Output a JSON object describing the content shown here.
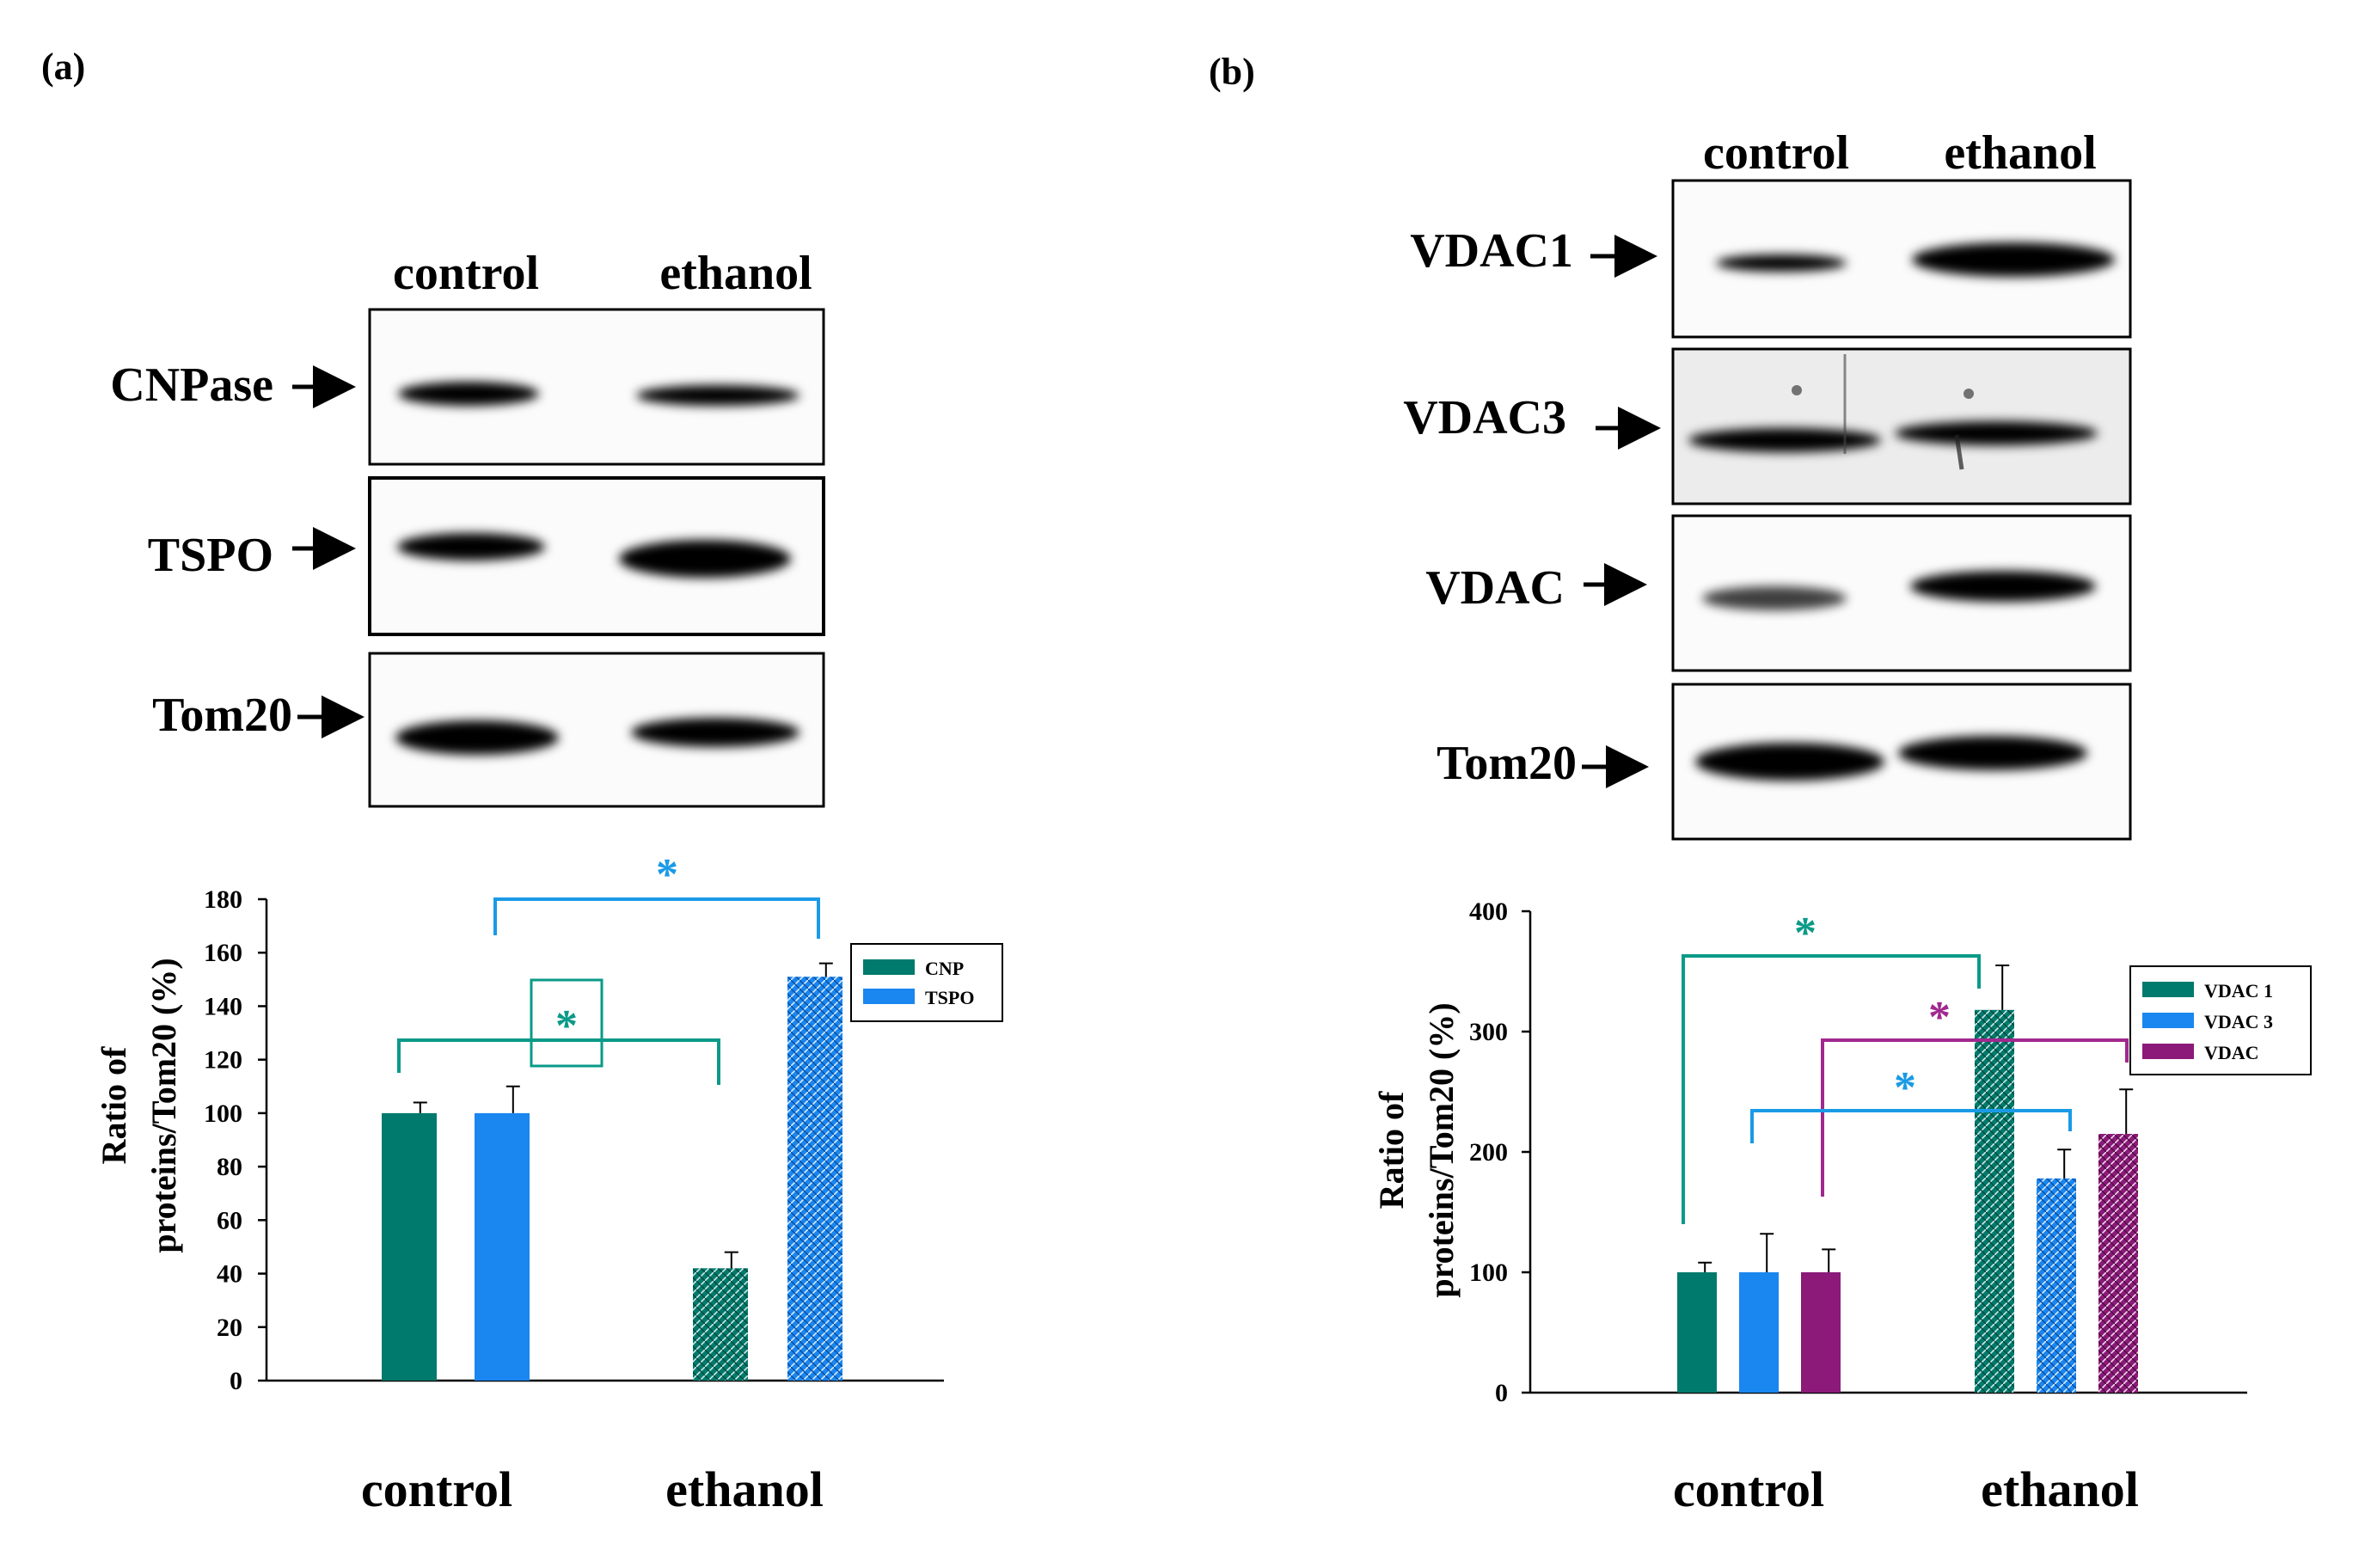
{
  "panels": {
    "a": {
      "label": "(a)"
    },
    "b": {
      "label": "(b)"
    }
  },
  "blot_a": {
    "lanes": [
      "control",
      "ethanol"
    ],
    "rows": [
      {
        "name": "CNPase",
        "control": 0.45,
        "ethanol": 0.25
      },
      {
        "name": "TSPO",
        "control": 0.8,
        "ethanol": 1.0
      },
      {
        "name": "Tom20",
        "control": 1.0,
        "ethanol": 0.95
      }
    ]
  },
  "blot_b": {
    "lanes": [
      "control",
      "ethanol"
    ],
    "rows": [
      {
        "name": "VDAC1",
        "control": 0.35,
        "ethanol": 1.0
      },
      {
        "name": "VDAC3",
        "control": 0.75,
        "ethanol": 0.8
      },
      {
        "name": "VDAC",
        "control": 0.45,
        "ethanol": 0.85
      },
      {
        "name": "Tom20",
        "control": 1.0,
        "ethanol": 1.0
      }
    ]
  },
  "colors": {
    "teal": "#007a6c",
    "blue": "#1a86f0",
    "purple": "#8b1a78",
    "cyan": "#1a9ae6",
    "axis": "#000000"
  },
  "chart_data": [
    {
      "type": "bar",
      "panel": "a",
      "categories": [
        "control",
        "ethanol"
      ],
      "series": [
        {
          "name": "CNP",
          "values": [
            100,
            42
          ],
          "errors": [
            4,
            6
          ],
          "color": "teal"
        },
        {
          "name": "TSPO",
          "values": [
            100,
            151
          ],
          "errors": [
            10,
            5
          ],
          "color": "blue"
        }
      ],
      "ylabel": [
        "Ratio of",
        "proteins/Tom20 (%)"
      ],
      "ylim": [
        0,
        180
      ],
      "yticks": [
        0,
        20,
        40,
        60,
        80,
        100,
        120,
        140,
        160,
        180
      ],
      "legend": "top-right",
      "significance": [
        {
          "series": "TSPO",
          "mark": "*",
          "color": "blue"
        },
        {
          "series": "CNP",
          "mark": "*",
          "color": "teal",
          "boxed": true
        }
      ]
    },
    {
      "type": "bar",
      "panel": "b",
      "categories": [
        "control",
        "ethanol"
      ],
      "series": [
        {
          "name": "VDAC 1",
          "values": [
            100,
            318
          ],
          "errors": [
            8,
            37
          ],
          "color": "teal"
        },
        {
          "name": "VDAC 3",
          "values": [
            100,
            178
          ],
          "errors": [
            32,
            24
          ],
          "color": "blue"
        },
        {
          "name": "VDAC",
          "values": [
            100,
            215
          ],
          "errors": [
            19,
            37
          ],
          "color": "purple"
        }
      ],
      "ylabel": [
        "Ratio of",
        "proteins/Tom20 (%)"
      ],
      "ylim": [
        0,
        400
      ],
      "yticks": [
        0,
        100,
        200,
        300,
        400
      ],
      "legend": "top-right",
      "significance": [
        {
          "series": "VDAC 1",
          "mark": "*",
          "color": "teal"
        },
        {
          "series": "VDAC",
          "mark": "*",
          "color": "purple"
        },
        {
          "series": "VDAC 3",
          "mark": "*",
          "color": "blue"
        }
      ]
    }
  ]
}
